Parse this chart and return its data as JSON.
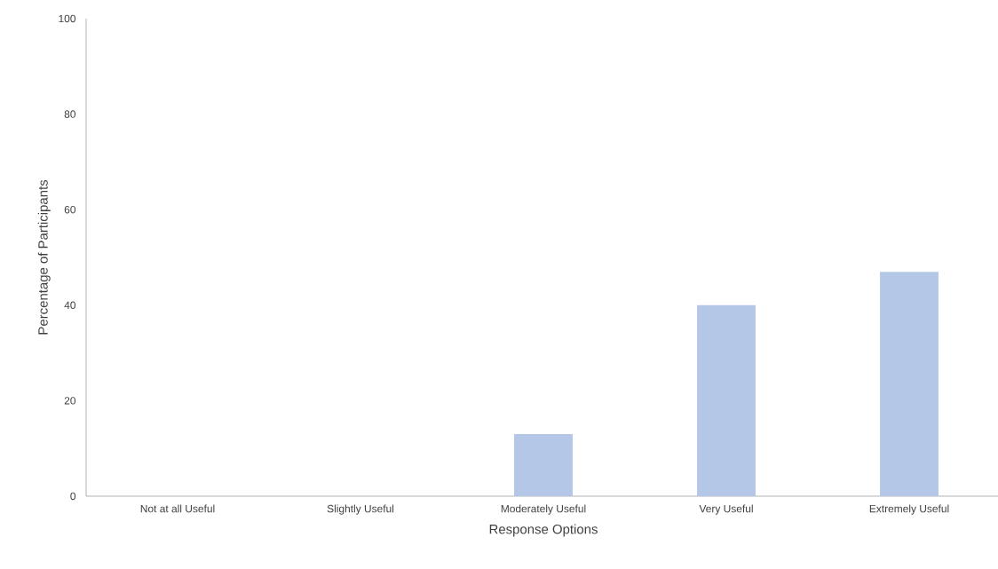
{
  "chart_data": {
    "type": "bar",
    "xlabel": "Response Options",
    "ylabel": "Percentage of Participants",
    "categories": [
      "Not at all Useful",
      "Slightly Useful",
      "Moderately Useful",
      "Very Useful",
      "Extremely Useful"
    ],
    "values": [
      0,
      0,
      13,
      40,
      47
    ],
    "color": "#b4c7e7",
    "ylim": [
      0,
      100
    ],
    "yticks": [
      0,
      20,
      40,
      60,
      80,
      100
    ]
  }
}
